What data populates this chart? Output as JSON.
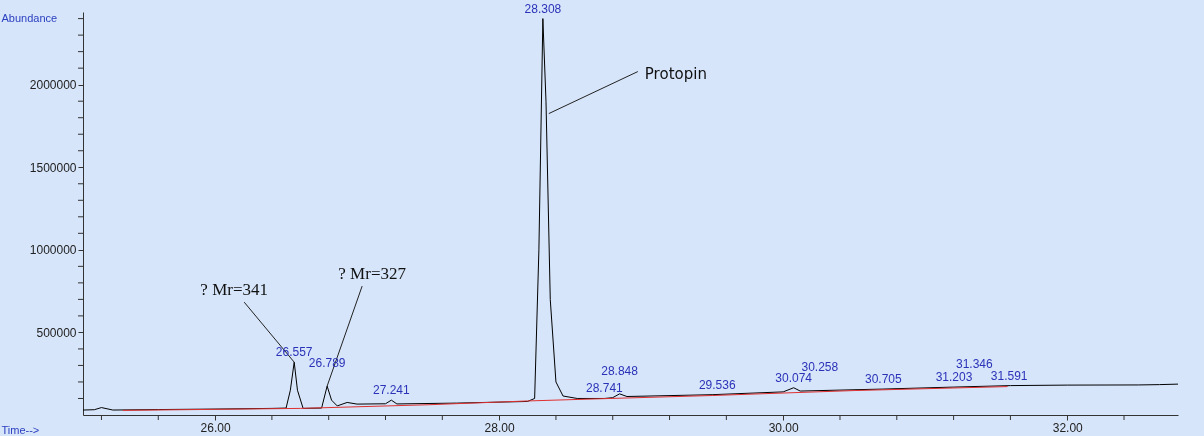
{
  "chart_data": {
    "type": "line",
    "xlabel": "Time-->",
    "ylabel": "Abundance",
    "xlim": [
      25.07,
      32.78
    ],
    "ylim": [
      0,
      2440000
    ],
    "xticks": [
      {
        "value": 25.2,
        "label": null
      },
      {
        "value": 25.6,
        "label": null
      },
      {
        "value": 26,
        "label": "26.00"
      },
      {
        "value": 26.4,
        "label": null
      },
      {
        "value": 26.8,
        "label": null
      },
      {
        "value": 27.2,
        "label": null
      },
      {
        "value": 27.6,
        "label": null
      },
      {
        "value": 28,
        "label": "28.00"
      },
      {
        "value": 28.4,
        "label": null
      },
      {
        "value": 28.8,
        "label": null
      },
      {
        "value": 29.2,
        "label": null
      },
      {
        "value": 29.6,
        "label": null
      },
      {
        "value": 30,
        "label": "30.00"
      },
      {
        "value": 30.4,
        "label": null
      },
      {
        "value": 30.8,
        "label": null
      },
      {
        "value": 31.2,
        "label": null
      },
      {
        "value": 31.6,
        "label": null
      },
      {
        "value": 32,
        "label": "32.00"
      },
      {
        "value": 32.4,
        "label": null
      }
    ],
    "yticks": [
      {
        "value": 100000,
        "label": null
      },
      {
        "value": 200000,
        "label": null
      },
      {
        "value": 300000,
        "label": null
      },
      {
        "value": 400000,
        "label": null
      },
      500000,
      {
        "value": 600000,
        "label": null
      },
      {
        "value": 700000,
        "label": null
      },
      {
        "value": 800000,
        "label": null
      },
      {
        "value": 900000,
        "label": null
      },
      1000000,
      {
        "value": 1100000,
        "label": null
      },
      {
        "value": 1200000,
        "label": null
      },
      {
        "value": 1300000,
        "label": null
      },
      {
        "value": 1400000,
        "label": null
      },
      1500000,
      {
        "value": 1600000,
        "label": null
      },
      {
        "value": 1700000,
        "label": null
      },
      {
        "value": 1800000,
        "label": null
      },
      {
        "value": 1900000,
        "label": null
      },
      2000000,
      {
        "value": 2100000,
        "label": null
      },
      {
        "value": 2200000,
        "label": null
      },
      {
        "value": 2300000,
        "label": null
      },
      {
        "value": 2400000,
        "label": null
      }
    ],
    "grid": false,
    "series": [
      {
        "color": "#000000",
        "x": [
          25.07,
          25.15,
          25.2,
          25.28,
          25.6,
          26.0,
          26.4,
          26.5,
          26.53,
          26.557,
          26.58,
          26.62,
          26.75,
          26.789,
          26.82,
          26.86,
          26.93,
          27.0,
          27.2,
          27.241,
          27.28,
          27.7,
          28.2,
          28.25,
          28.28,
          28.308,
          28.33,
          28.36,
          28.4,
          28.45,
          28.55,
          28.74,
          28.8,
          28.848,
          28.9,
          29.5,
          30.0,
          30.074,
          30.12,
          30.7,
          31.2,
          31.6,
          32.0,
          32.5,
          32.65,
          32.78
        ],
        "values": [
          30000,
          32000,
          45000,
          30000,
          33000,
          36000,
          40000,
          42000,
          150000,
          320000,
          150000,
          40000,
          42000,
          175000,
          90000,
          55000,
          76000,
          66000,
          68000,
          90000,
          67000,
          72000,
          82000,
          100000,
          1000000,
          2400000,
          1900000,
          700000,
          200000,
          115000,
          100000,
          100000,
          105000,
          128000,
          112000,
          123000,
          140000,
          165000,
          145000,
          157000,
          169000,
          178000,
          181000,
          182000,
          184000,
          187000
        ]
      },
      {
        "color": "#e03030",
        "x": [
          25.35,
          26.6,
          27.5,
          28.2,
          28.7,
          29.5,
          30.5,
          31.58
        ],
        "values": [
          28000,
          40000,
          62000,
          85000,
          98000,
          118000,
          148000,
          172000
        ]
      }
    ],
    "annotations": [
      {
        "text": "? Mr=341",
        "x": 26.557,
        "y": 320000
      },
      {
        "text": "? Mr=327",
        "x": 26.789,
        "y": 175000
      },
      {
        "text": "Protopin",
        "x": 28.35,
        "y": 1825000
      },
      {
        "text": "26.557",
        "x": 26.557,
        "y": 320000
      },
      {
        "text": "26.789",
        "x": 26.789,
        "y": 175000
      },
      {
        "text": "27.241",
        "x": 27.241,
        "y": 90000
      },
      {
        "text": "28.308",
        "x": 28.308,
        "y": 2400000
      },
      {
        "text": "28.741",
        "x": 28.741,
        "y": 100000
      },
      {
        "text": "28.848",
        "x": 28.848,
        "y": 128000
      },
      {
        "text": "29.536",
        "x": 29.536,
        "y": 123000
      },
      {
        "text": "30.074",
        "x": 30.074,
        "y": 165000
      },
      {
        "text": "30.258",
        "x": 30.258,
        "y": 150000
      },
      {
        "text": "30.705",
        "x": 30.705,
        "y": 157000
      },
      {
        "text": "31.203",
        "x": 31.203,
        "y": 169000
      },
      {
        "text": "31.346",
        "x": 31.346,
        "y": 172000
      },
      {
        "text": "31.591",
        "x": 31.591,
        "y": 178000
      }
    ]
  }
}
